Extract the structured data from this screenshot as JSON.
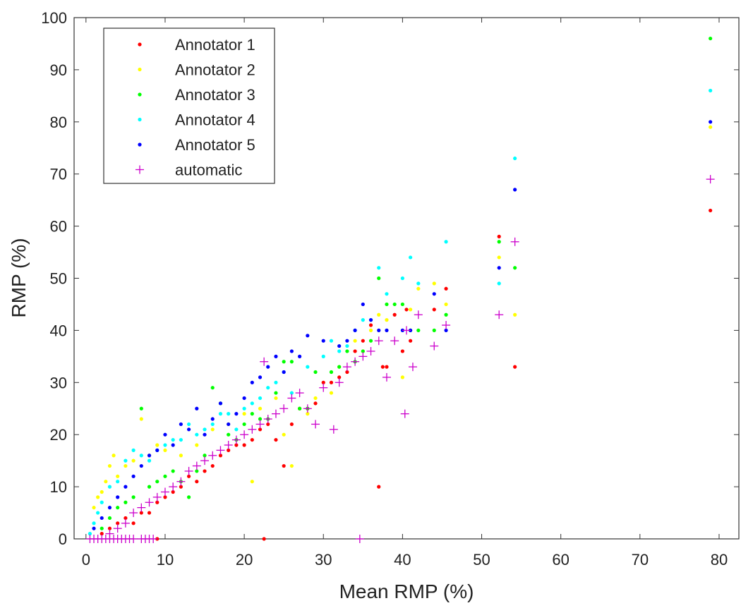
{
  "chart_data": {
    "type": "scatter",
    "title": "",
    "xlabel": "Mean RMP (%)",
    "ylabel": "RMP (%)",
    "xlim": [
      -1.5,
      82.5
    ],
    "ylim": [
      0,
      100
    ],
    "xticks": [
      0,
      10,
      20,
      30,
      40,
      50,
      60,
      70,
      80
    ],
    "yticks": [
      0,
      10,
      20,
      30,
      40,
      50,
      60,
      70,
      80,
      90,
      100
    ],
    "grid": false,
    "legend_position": "top-left",
    "series": [
      {
        "name": "Annotator 1",
        "color": "#ff0000",
        "marker": "dot",
        "points": [
          [
            2,
            1
          ],
          [
            3,
            2
          ],
          [
            4,
            3
          ],
          [
            5,
            4
          ],
          [
            6,
            3
          ],
          [
            7,
            5
          ],
          [
            8,
            5
          ],
          [
            9,
            7
          ],
          [
            9,
            0
          ],
          [
            10,
            8
          ],
          [
            11,
            9
          ],
          [
            12,
            10
          ],
          [
            13,
            12
          ],
          [
            14,
            11
          ],
          [
            15,
            13
          ],
          [
            16,
            14
          ],
          [
            17,
            16
          ],
          [
            18,
            17
          ],
          [
            19,
            18
          ],
          [
            20,
            18
          ],
          [
            21,
            19
          ],
          [
            22,
            21
          ],
          [
            22.5,
            0
          ],
          [
            23,
            22
          ],
          [
            24,
            19
          ],
          [
            25,
            14
          ],
          [
            26,
            22
          ],
          [
            27,
            25
          ],
          [
            28,
            25
          ],
          [
            29,
            26
          ],
          [
            30,
            30
          ],
          [
            31,
            30
          ],
          [
            32,
            31
          ],
          [
            33,
            32
          ],
          [
            34,
            36
          ],
          [
            35,
            38
          ],
          [
            36,
            41
          ],
          [
            37,
            10
          ],
          [
            37.5,
            33
          ],
          [
            38,
            33
          ],
          [
            39,
            43
          ],
          [
            40,
            36
          ],
          [
            40.5,
            44
          ],
          [
            41,
            38
          ],
          [
            44,
            44
          ],
          [
            45.5,
            48
          ],
          [
            52.2,
            58
          ],
          [
            54.2,
            33
          ],
          [
            78.9,
            63
          ]
        ]
      },
      {
        "name": "Annotator 2",
        "color": "#ffff00",
        "marker": "dot",
        "points": [
          [
            1,
            6
          ],
          [
            1.5,
            8
          ],
          [
            2,
            9
          ],
          [
            2.5,
            11
          ],
          [
            3,
            14
          ],
          [
            3.5,
            16
          ],
          [
            4,
            12
          ],
          [
            5,
            14
          ],
          [
            6,
            15
          ],
          [
            7,
            23
          ],
          [
            8,
            16
          ],
          [
            9,
            18
          ],
          [
            10,
            17
          ],
          [
            12,
            16
          ],
          [
            14,
            18
          ],
          [
            16,
            21
          ],
          [
            18,
            22
          ],
          [
            20,
            24
          ],
          [
            21,
            11
          ],
          [
            22,
            25
          ],
          [
            24,
            27
          ],
          [
            25,
            20
          ],
          [
            26,
            14
          ],
          [
            28,
            24
          ],
          [
            29,
            27
          ],
          [
            31,
            28
          ],
          [
            32,
            33
          ],
          [
            34,
            38
          ],
          [
            35,
            36
          ],
          [
            36,
            40
          ],
          [
            37,
            43
          ],
          [
            38,
            42
          ],
          [
            40,
            31
          ],
          [
            41,
            44
          ],
          [
            42,
            48
          ],
          [
            44,
            49
          ],
          [
            45.5,
            45
          ],
          [
            52.2,
            54
          ],
          [
            54.2,
            43
          ],
          [
            78.9,
            79
          ]
        ]
      },
      {
        "name": "Annotator 3",
        "color": "#00ff00",
        "marker": "dot",
        "points": [
          [
            2,
            2
          ],
          [
            3,
            4
          ],
          [
            4,
            6
          ],
          [
            5,
            7
          ],
          [
            6,
            8
          ],
          [
            7,
            25
          ],
          [
            8,
            10
          ],
          [
            9,
            11
          ],
          [
            10,
            12
          ],
          [
            11,
            13
          ],
          [
            12,
            11
          ],
          [
            13,
            8
          ],
          [
            14,
            13
          ],
          [
            15,
            16
          ],
          [
            16,
            29
          ],
          [
            17,
            26
          ],
          [
            18,
            20
          ],
          [
            19,
            19
          ],
          [
            20,
            22
          ],
          [
            21,
            24
          ],
          [
            22,
            23
          ],
          [
            23,
            23
          ],
          [
            24,
            28
          ],
          [
            25,
            34
          ],
          [
            26,
            34
          ],
          [
            27,
            25
          ],
          [
            28,
            25
          ],
          [
            29,
            32
          ],
          [
            31,
            32
          ],
          [
            32,
            33
          ],
          [
            33,
            36
          ],
          [
            34,
            34
          ],
          [
            35,
            36
          ],
          [
            36,
            38
          ],
          [
            37,
            50
          ],
          [
            38,
            45
          ],
          [
            39,
            45
          ],
          [
            40,
            45
          ],
          [
            41,
            40
          ],
          [
            42,
            40
          ],
          [
            44,
            40
          ],
          [
            45.5,
            43
          ],
          [
            52.2,
            57
          ],
          [
            54.2,
            52
          ],
          [
            78.9,
            96
          ]
        ]
      },
      {
        "name": "Annotator 4",
        "color": "#00ffff",
        "marker": "dot",
        "points": [
          [
            0.5,
            1
          ],
          [
            1,
            3
          ],
          [
            1.5,
            5
          ],
          [
            2,
            7
          ],
          [
            3,
            10
          ],
          [
            4,
            11
          ],
          [
            5,
            15
          ],
          [
            6,
            17
          ],
          [
            7,
            16
          ],
          [
            8,
            15
          ],
          [
            9,
            17
          ],
          [
            10,
            18
          ],
          [
            11,
            19
          ],
          [
            12,
            19
          ],
          [
            13,
            22
          ],
          [
            14,
            20
          ],
          [
            15,
            21
          ],
          [
            16,
            22
          ],
          [
            17,
            24
          ],
          [
            18,
            24
          ],
          [
            19,
            21
          ],
          [
            20,
            25
          ],
          [
            21,
            26
          ],
          [
            22,
            27
          ],
          [
            23,
            29
          ],
          [
            24,
            30
          ],
          [
            25,
            32
          ],
          [
            26,
            28
          ],
          [
            28,
            33
          ],
          [
            30,
            35
          ],
          [
            31,
            38
          ],
          [
            32,
            36
          ],
          [
            33,
            37
          ],
          [
            34,
            40
          ],
          [
            35,
            42
          ],
          [
            36,
            42
          ],
          [
            37,
            52
          ],
          [
            38,
            47
          ],
          [
            40,
            50
          ],
          [
            41,
            54
          ],
          [
            42,
            49
          ],
          [
            45.5,
            57
          ],
          [
            52.2,
            49
          ],
          [
            54.2,
            73
          ],
          [
            78.9,
            86
          ]
        ]
      },
      {
        "name": "Annotator 5",
        "color": "#0000ff",
        "marker": "dot",
        "points": [
          [
            1,
            2
          ],
          [
            2,
            4
          ],
          [
            3,
            6
          ],
          [
            4,
            8
          ],
          [
            5,
            10
          ],
          [
            6,
            12
          ],
          [
            7,
            14
          ],
          [
            8,
            16
          ],
          [
            9,
            17
          ],
          [
            10,
            20
          ],
          [
            11,
            18
          ],
          [
            12,
            22
          ],
          [
            13,
            21
          ],
          [
            14,
            25
          ],
          [
            15,
            20
          ],
          [
            16,
            23
          ],
          [
            17,
            26
          ],
          [
            18,
            22
          ],
          [
            19,
            24
          ],
          [
            20,
            27
          ],
          [
            21,
            30
          ],
          [
            22,
            31
          ],
          [
            23,
            33
          ],
          [
            24,
            35
          ],
          [
            25,
            32
          ],
          [
            26,
            36
          ],
          [
            27,
            35
          ],
          [
            28,
            39
          ],
          [
            30,
            38
          ],
          [
            32,
            37
          ],
          [
            33,
            38
          ],
          [
            34,
            40
          ],
          [
            35,
            45
          ],
          [
            36,
            42
          ],
          [
            37,
            40
          ],
          [
            38,
            40
          ],
          [
            40,
            40
          ],
          [
            41,
            40
          ],
          [
            44,
            47
          ],
          [
            45.5,
            40
          ],
          [
            52.2,
            52
          ],
          [
            54.2,
            67
          ],
          [
            78.9,
            80
          ]
        ]
      },
      {
        "name": "automatic",
        "color": "#cc00cc",
        "marker": "plus",
        "points": [
          [
            0.5,
            0
          ],
          [
            1,
            0
          ],
          [
            1.5,
            0
          ],
          [
            2,
            0
          ],
          [
            2.5,
            0
          ],
          [
            3,
            0
          ],
          [
            3.5,
            0
          ],
          [
            4,
            0
          ],
          [
            4.5,
            0
          ],
          [
            5,
            0
          ],
          [
            5.5,
            0
          ],
          [
            6,
            0
          ],
          [
            7,
            0
          ],
          [
            7.5,
            0
          ],
          [
            8,
            0
          ],
          [
            8.5,
            0
          ],
          [
            3,
            1
          ],
          [
            4,
            2
          ],
          [
            5,
            3
          ],
          [
            6,
            5
          ],
          [
            7,
            6
          ],
          [
            8,
            7
          ],
          [
            9,
            8
          ],
          [
            10,
            9
          ],
          [
            11,
            10
          ],
          [
            12,
            11
          ],
          [
            13,
            13
          ],
          [
            14,
            14
          ],
          [
            15,
            15
          ],
          [
            16,
            16
          ],
          [
            17,
            17
          ],
          [
            18,
            18
          ],
          [
            19,
            19
          ],
          [
            20,
            20
          ],
          [
            21,
            21
          ],
          [
            22,
            22
          ],
          [
            22.5,
            34
          ],
          [
            23,
            23
          ],
          [
            24,
            24
          ],
          [
            25,
            25
          ],
          [
            26,
            27
          ],
          [
            27,
            28
          ],
          [
            28,
            25
          ],
          [
            29,
            22
          ],
          [
            30,
            29
          ],
          [
            31.3,
            21
          ],
          [
            32,
            30
          ],
          [
            33,
            33
          ],
          [
            34,
            34
          ],
          [
            34.6,
            0
          ],
          [
            35,
            35
          ],
          [
            36,
            36
          ],
          [
            37,
            38
          ],
          [
            38,
            31
          ],
          [
            39,
            38
          ],
          [
            40.3,
            24
          ],
          [
            40.5,
            40
          ],
          [
            41.3,
            33
          ],
          [
            42,
            43
          ],
          [
            44,
            37
          ],
          [
            45.5,
            41
          ],
          [
            52.2,
            43
          ],
          [
            54.2,
            57
          ],
          [
            78.9,
            69
          ]
        ]
      }
    ]
  }
}
